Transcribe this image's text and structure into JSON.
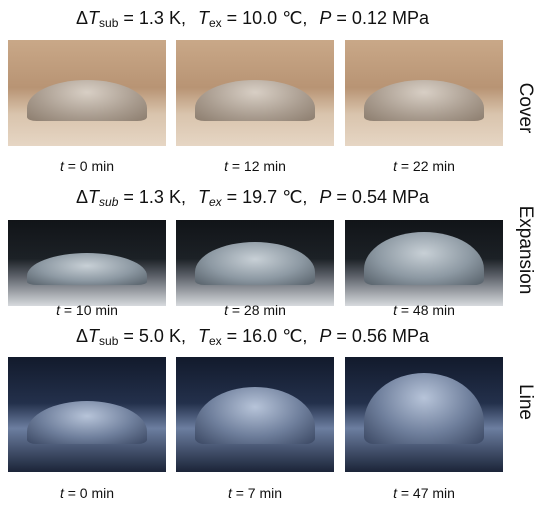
{
  "rows": [
    {
      "label": "Cover",
      "sub_italic": false,
      "header": {
        "delta": "Δ",
        "dt_symbol": "T",
        "dt_sub": "sub",
        "dt_value": " = 1.3 K,",
        "tex_symbol": "T",
        "tex_sub": "ex",
        "tex_value": " = 10.0 ℃,",
        "p_symbol": "P",
        "p_value": " = 0.12 MPa"
      },
      "images": [
        {
          "symbol": "t",
          "value": " = 0 min"
        },
        {
          "symbol": "t",
          "value": " = 12 min"
        },
        {
          "symbol": "t",
          "value": " = 22 min"
        }
      ]
    },
    {
      "label": "Expansion",
      "sub_italic": true,
      "header": {
        "delta": "Δ",
        "dt_symbol": "T",
        "dt_sub": "sub",
        "dt_value": " = 1.3 K,",
        "tex_symbol": "T",
        "tex_sub": "ex",
        "tex_value": " = 19.7 ℃,",
        "p_symbol": "P",
        "p_value": " = 0.54 MPa"
      },
      "images": [
        {
          "symbol": "t",
          "value": " = 10 min"
        },
        {
          "symbol": "t",
          "value": " = 28 min"
        },
        {
          "symbol": "t",
          "value": " = 48 min"
        }
      ]
    },
    {
      "label": "Line",
      "sub_italic": false,
      "header": {
        "delta": "Δ",
        "dt_symbol": "T",
        "dt_sub": "sub",
        "dt_value": " = 5.0 K,",
        "tex_symbol": "T",
        "tex_sub": "ex",
        "tex_value": " = 16.0 ℃,",
        "p_symbol": "P",
        "p_value": " = 0.56 MPa"
      },
      "images": [
        {
          "symbol": "t",
          "value": " = 0 min"
        },
        {
          "symbol": "t",
          "value": " = 7 min"
        },
        {
          "symbol": "t",
          "value": " = 47 min"
        }
      ]
    }
  ]
}
